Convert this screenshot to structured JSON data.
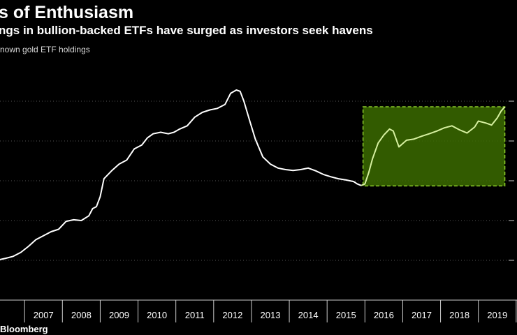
{
  "header": {
    "title": "s of Enthusiasm",
    "subtitle": "ngs in bullion-backed ETFs have surged as investors seek havens",
    "legend_label": "nown gold ETF holdings"
  },
  "footer": {
    "source": "Bloomberg"
  },
  "colors": {
    "background": "#000000",
    "line": "#ffffff",
    "highlight_line": "#d6f0a0",
    "highlight_fill": "#3b6b00",
    "highlight_border": "#8ccc2a",
    "grid": "#555555"
  },
  "chart_data": {
    "type": "line",
    "title": "",
    "xlabel": "",
    "ylabel": "",
    "xlim": [
      2006.35,
      2019.8
    ],
    "ylim": [
      0,
      6
    ],
    "grid": "horizontal dotted",
    "x_tick_labels": [
      "2007",
      "2008",
      "2009",
      "2010",
      "2011",
      "2012",
      "2013",
      "2014",
      "2015",
      "2016",
      "2017",
      "2018",
      "2019"
    ],
    "highlight_box": {
      "x_start": 2015.95,
      "x_end": 2019.7,
      "y_low": 2.87,
      "y_high": 4.86
    },
    "series": [
      {
        "values": [
          [
            2006.35,
            1.02
          ],
          [
            2006.5,
            1.05
          ],
          [
            2006.7,
            1.1
          ],
          [
            2006.9,
            1.2
          ],
          [
            2007.1,
            1.35
          ],
          [
            2007.3,
            1.52
          ],
          [
            2007.5,
            1.62
          ],
          [
            2007.7,
            1.72
          ],
          [
            2007.9,
            1.78
          ],
          [
            2008.1,
            1.98
          ],
          [
            2008.3,
            2.02
          ],
          [
            2008.5,
            2.0
          ],
          [
            2008.7,
            2.12
          ],
          [
            2008.8,
            2.3
          ],
          [
            2008.9,
            2.35
          ],
          [
            2009.0,
            2.6
          ],
          [
            2009.1,
            3.05
          ],
          [
            2009.3,
            3.25
          ],
          [
            2009.5,
            3.42
          ],
          [
            2009.7,
            3.52
          ],
          [
            2009.9,
            3.8
          ],
          [
            2010.1,
            3.9
          ],
          [
            2010.25,
            4.08
          ],
          [
            2010.4,
            4.18
          ],
          [
            2010.6,
            4.22
          ],
          [
            2010.8,
            4.18
          ],
          [
            2010.95,
            4.22
          ],
          [
            2011.1,
            4.3
          ],
          [
            2011.3,
            4.38
          ],
          [
            2011.5,
            4.6
          ],
          [
            2011.7,
            4.72
          ],
          [
            2011.9,
            4.78
          ],
          [
            2012.1,
            4.82
          ],
          [
            2012.3,
            4.92
          ],
          [
            2012.45,
            5.2
          ],
          [
            2012.6,
            5.28
          ],
          [
            2012.7,
            5.25
          ],
          [
            2012.8,
            5.0
          ],
          [
            2012.95,
            4.52
          ],
          [
            2013.1,
            4.05
          ],
          [
            2013.3,
            3.6
          ],
          [
            2013.5,
            3.42
          ],
          [
            2013.7,
            3.32
          ],
          [
            2013.9,
            3.28
          ],
          [
            2014.1,
            3.26
          ],
          [
            2014.3,
            3.28
          ],
          [
            2014.5,
            3.32
          ],
          [
            2014.7,
            3.25
          ],
          [
            2014.9,
            3.16
          ],
          [
            2015.1,
            3.1
          ],
          [
            2015.3,
            3.05
          ],
          [
            2015.5,
            3.02
          ],
          [
            2015.7,
            2.98
          ],
          [
            2015.8,
            2.92
          ],
          [
            2015.9,
            2.88
          ],
          [
            2016.0,
            2.92
          ],
          [
            2016.1,
            3.2
          ],
          [
            2016.2,
            3.55
          ],
          [
            2016.35,
            3.95
          ],
          [
            2016.5,
            4.15
          ],
          [
            2016.65,
            4.3
          ],
          [
            2016.75,
            4.25
          ],
          [
            2016.9,
            3.85
          ],
          [
            2017.1,
            4.02
          ],
          [
            2017.3,
            4.05
          ],
          [
            2017.5,
            4.12
          ],
          [
            2017.7,
            4.18
          ],
          [
            2017.9,
            4.25
          ],
          [
            2018.1,
            4.33
          ],
          [
            2018.3,
            4.38
          ],
          [
            2018.5,
            4.28
          ],
          [
            2018.7,
            4.2
          ],
          [
            2018.9,
            4.35
          ],
          [
            2019.0,
            4.5
          ],
          [
            2019.2,
            4.45
          ],
          [
            2019.35,
            4.4
          ],
          [
            2019.5,
            4.58
          ],
          [
            2019.6,
            4.75
          ],
          [
            2019.7,
            4.86
          ]
        ]
      }
    ]
  }
}
